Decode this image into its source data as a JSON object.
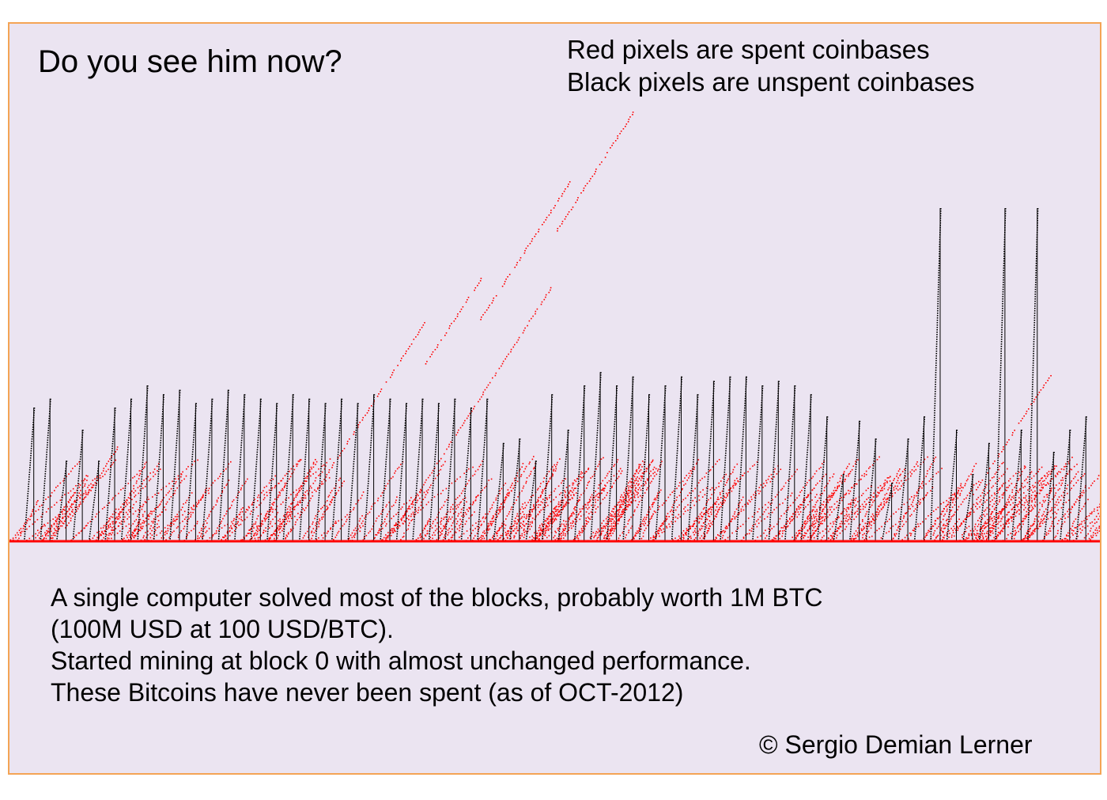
{
  "chart_data": {
    "type": "scatter",
    "title": "Do you see him now?",
    "legend": {
      "placement": "top-right",
      "entries": [
        {
          "text": "Red pixels are spent coinbases",
          "color": "#ff0000"
        },
        {
          "text": "Black pixels are unspent coinbases",
          "color": "#000000"
        }
      ]
    },
    "xlabel": "",
    "ylabel": "",
    "grid": false,
    "series": [
      {
        "color": "#ff0000"
      },
      {
        "color": "#000000"
      }
    ],
    "sawtooth_peaks": [
      0.3,
      0.32,
      0.18,
      0.25,
      0.18,
      0.3,
      0.32,
      0.35,
      0.33,
      0.34,
      0.31,
      0.32,
      0.34,
      0.33,
      0.32,
      0.31,
      0.33,
      0.32,
      0.31,
      0.32,
      0.31,
      0.33,
      0.32,
      0.31,
      0.32,
      0.31,
      0.32,
      0.3,
      0.32,
      0.22,
      0.23,
      0.18,
      0.33,
      0.25,
      0.35,
      0.38,
      0.35,
      0.37,
      0.33,
      0.35,
      0.37,
      0.33,
      0.36,
      0.37,
      0.37,
      0.35,
      0.36,
      0.35,
      0.33,
      0.28,
      0.15,
      0.27,
      0.23,
      0.13,
      0.23,
      0.28,
      0.75,
      0.25,
      0.15,
      0.22,
      0.75,
      0.25,
      0.75,
      0.2,
      0.25,
      0.28
    ],
    "spent_trails": [
      [
        0.05,
        0.03,
        0.22
      ],
      [
        0.25,
        0.0,
        0.5
      ],
      [
        0.35,
        0.02,
        0.58
      ],
      [
        0.38,
        0.4,
        0.6
      ],
      [
        0.43,
        0.5,
        0.82
      ],
      [
        0.5,
        0.7,
        0.98
      ],
      [
        0.88,
        0.1,
        0.38
      ]
    ],
    "annotations": [
      "A single computer solved most of the blocks, probably worth 1M BTC",
      "(100M USD at 100 USD/BTC).",
      "Started mining at block 0 with almost unchanged performance.",
      "These Bitcoins have never been spent (as of OCT-2012)"
    ]
  },
  "credit": "© Sergio Demian Lerner"
}
